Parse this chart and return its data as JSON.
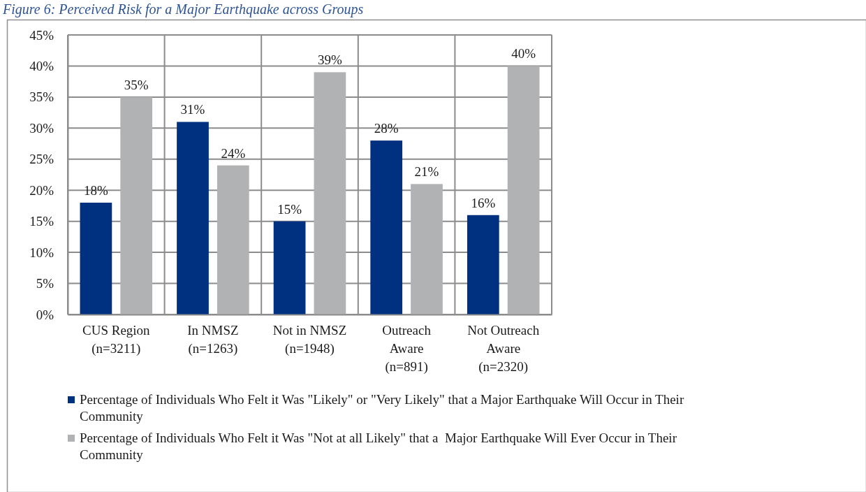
{
  "chart_data": {
    "type": "bar",
    "title": "Figure 6: Perceived Risk for a Major Earthquake across Groups",
    "categories": [
      "CUS Region (n=3211)",
      "In NMSZ (n=1263)",
      "Not in NMSZ (n=1948)",
      "Outreach Aware (n=891)",
      "Not Outreach Aware (n=2320)"
    ],
    "series": [
      {
        "name": "Percentage of Individuals Who Felt it Was \"Likely\" or \"Very Likely\" that a Major Earthquake Will Occur in Their Community",
        "color": "#003080",
        "values": [
          18,
          31,
          15,
          28,
          16
        ],
        "value_labels": [
          "18%",
          "31%",
          "15%",
          "28%",
          "16%"
        ]
      },
      {
        "name": "Percentage of Individuals Who Felt it Was \"Not at all Likely\" that a  Major Earthquake Will Ever Occur in Their Community",
        "color": "#b1b2b4",
        "values": [
          35,
          24,
          39,
          21,
          40
        ],
        "value_labels": [
          "35%",
          "24%",
          "39%",
          "21%",
          "40%"
        ]
      }
    ],
    "ylim": [
      0,
      45
    ],
    "yticks": [
      {
        "value": 0,
        "label": "0%"
      },
      {
        "value": 5,
        "label": "5%"
      },
      {
        "value": 10,
        "label": "10%"
      },
      {
        "value": 15,
        "label": "15%"
      },
      {
        "value": 20,
        "label": "20%"
      },
      {
        "value": 25,
        "label": "25%"
      },
      {
        "value": 30,
        "label": "30%"
      },
      {
        "value": 35,
        "label": "35%"
      },
      {
        "value": 40,
        "label": "40%"
      },
      {
        "value": 45,
        "label": "45%"
      }
    ],
    "grid": true,
    "legend": "bottom"
  }
}
